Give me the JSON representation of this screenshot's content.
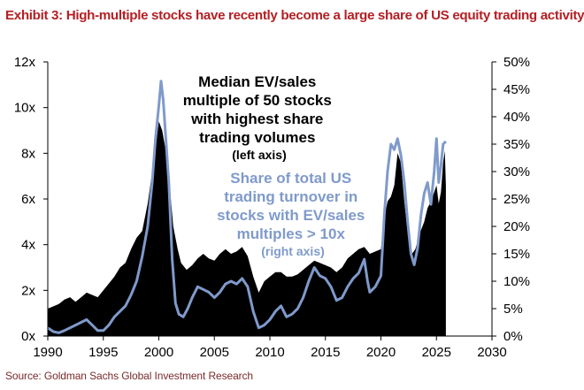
{
  "title": "Exhibit 3: High-multiple stocks have recently become a large share of US equity trading activity",
  "source": "Source: Goldman Sachs Global Investment Research",
  "colors": {
    "title": "#b41f24",
    "median_series": "#000000",
    "share_series": "#7f9acb",
    "share_annotation": "#7f9acb"
  },
  "chart_data": {
    "type": "area",
    "title": "Exhibit 3: High-multiple stocks have recently become a large share of US equity trading activity",
    "xlabel": "",
    "ylabel": "",
    "grid": false,
    "legend": "none",
    "xlim": [
      1990,
      2030
    ],
    "ylim_left": [
      0,
      12
    ],
    "ylim_right": [
      0,
      50
    ],
    "x_ticks": [
      "1990",
      "1995",
      "2000",
      "2005",
      "2010",
      "2015",
      "2020",
      "2025",
      "2030"
    ],
    "left_ticks": [
      "0x",
      "2x",
      "4x",
      "6x",
      "8x",
      "10x",
      "12x"
    ],
    "right_ticks": [
      "0%",
      "5%",
      "10%",
      "15%",
      "20%",
      "25%",
      "30%",
      "35%",
      "40%",
      "45%",
      "50%"
    ],
    "annotations": {
      "median": [
        "Median EV/sales",
        "multiple of 50 stocks",
        "with highest share",
        "trading volumes",
        "(left axis)"
      ],
      "share": [
        "Share of total US",
        "trading turnover in",
        "stocks with EV/sales",
        "multiples > 10x",
        "(right axis)"
      ]
    },
    "series": [
      {
        "name": "Median EV/sales multiple of 50 stocks with highest share trading volumes",
        "axis": "left",
        "kind": "area",
        "points": [
          [
            1990.0,
            1.2
          ],
          [
            1990.5,
            1.3
          ],
          [
            1991.0,
            1.4
          ],
          [
            1991.5,
            1.6
          ],
          [
            1992.0,
            1.7
          ],
          [
            1992.5,
            1.5
          ],
          [
            1993.0,
            1.7
          ],
          [
            1993.5,
            1.9
          ],
          [
            1994.0,
            1.8
          ],
          [
            1994.5,
            1.7
          ],
          [
            1995.0,
            2.0
          ],
          [
            1995.5,
            2.3
          ],
          [
            1996.0,
            2.6
          ],
          [
            1996.5,
            3.0
          ],
          [
            1997.0,
            3.2
          ],
          [
            1997.5,
            3.8
          ],
          [
            1998.0,
            4.3
          ],
          [
            1998.5,
            4.6
          ],
          [
            1999.0,
            5.8
          ],
          [
            1999.5,
            7.5
          ],
          [
            1999.8,
            8.6
          ],
          [
            2000.0,
            9.4
          ],
          [
            2000.3,
            9.0
          ],
          [
            2000.6,
            8.2
          ],
          [
            2000.9,
            7.0
          ],
          [
            2001.3,
            4.8
          ],
          [
            2001.7,
            3.8
          ],
          [
            2002.0,
            3.2
          ],
          [
            2002.5,
            2.9
          ],
          [
            2003.0,
            3.1
          ],
          [
            2003.5,
            3.4
          ],
          [
            2004.0,
            3.6
          ],
          [
            2004.5,
            3.4
          ],
          [
            2005.0,
            3.3
          ],
          [
            2005.5,
            3.6
          ],
          [
            2006.0,
            3.8
          ],
          [
            2006.5,
            3.6
          ],
          [
            2007.0,
            3.7
          ],
          [
            2007.5,
            3.9
          ],
          [
            2008.0,
            3.5
          ],
          [
            2008.5,
            2.6
          ],
          [
            2009.0,
            1.9
          ],
          [
            2009.5,
            2.4
          ],
          [
            2010.0,
            2.6
          ],
          [
            2010.5,
            2.8
          ],
          [
            2011.0,
            2.8
          ],
          [
            2011.5,
            2.6
          ],
          [
            2012.0,
            2.6
          ],
          [
            2012.5,
            2.7
          ],
          [
            2013.0,
            2.9
          ],
          [
            2013.5,
            3.1
          ],
          [
            2014.0,
            3.3
          ],
          [
            2014.5,
            3.2
          ],
          [
            2015.0,
            3.1
          ],
          [
            2015.5,
            3.0
          ],
          [
            2016.0,
            2.8
          ],
          [
            2016.5,
            3.0
          ],
          [
            2017.0,
            3.4
          ],
          [
            2017.5,
            3.6
          ],
          [
            2018.0,
            3.8
          ],
          [
            2018.5,
            3.9
          ],
          [
            2019.0,
            3.6
          ],
          [
            2019.5,
            3.7
          ],
          [
            2020.0,
            3.8
          ],
          [
            2020.3,
            5.2
          ],
          [
            2020.6,
            5.9
          ],
          [
            2020.9,
            6.1
          ],
          [
            2021.2,
            6.6
          ],
          [
            2021.5,
            8.0
          ],
          [
            2021.8,
            7.6
          ],
          [
            2022.1,
            5.9
          ],
          [
            2022.4,
            4.6
          ],
          [
            2022.8,
            3.6
          ],
          [
            2023.1,
            3.8
          ],
          [
            2023.5,
            4.5
          ],
          [
            2023.9,
            5.0
          ],
          [
            2024.2,
            5.6
          ],
          [
            2024.5,
            5.9
          ],
          [
            2024.8,
            6.3
          ],
          [
            2025.0,
            6.6
          ],
          [
            2025.2,
            5.8
          ],
          [
            2025.4,
            6.3
          ],
          [
            2025.6,
            7.6
          ],
          [
            2025.75,
            8.1
          ],
          [
            2025.85,
            6.6
          ]
        ]
      },
      {
        "name": "Share of total US trading turnover in stocks with EV/sales multiples > 10x",
        "axis": "right",
        "kind": "line",
        "points": [
          [
            1990.0,
            1.5
          ],
          [
            1990.5,
            0.8
          ],
          [
            1991.0,
            0.6
          ],
          [
            1991.5,
            1.0
          ],
          [
            1992.0,
            1.5
          ],
          [
            1992.5,
            2.0
          ],
          [
            1993.0,
            2.5
          ],
          [
            1993.5,
            3.0
          ],
          [
            1994.0,
            2.0
          ],
          [
            1994.5,
            1.0
          ],
          [
            1995.0,
            1.0
          ],
          [
            1995.5,
            2.0
          ],
          [
            1996.0,
            3.5
          ],
          [
            1996.5,
            4.5
          ],
          [
            1997.0,
            5.5
          ],
          [
            1997.5,
            7.5
          ],
          [
            1998.0,
            10.0
          ],
          [
            1998.5,
            14.5
          ],
          [
            1999.0,
            20.0
          ],
          [
            1999.4,
            28.0
          ],
          [
            1999.7,
            36.0
          ],
          [
            2000.0,
            42.0
          ],
          [
            2000.2,
            46.5
          ],
          [
            2000.4,
            43.0
          ],
          [
            2000.6,
            37.0
          ],
          [
            2000.9,
            28.0
          ],
          [
            2001.2,
            14.0
          ],
          [
            2001.5,
            6.0
          ],
          [
            2001.8,
            4.0
          ],
          [
            2002.2,
            3.5
          ],
          [
            2002.6,
            5.0
          ],
          [
            2003.0,
            7.0
          ],
          [
            2003.5,
            9.0
          ],
          [
            2004.0,
            8.5
          ],
          [
            2004.5,
            8.0
          ],
          [
            2005.0,
            7.0
          ],
          [
            2005.5,
            8.0
          ],
          [
            2006.0,
            9.5
          ],
          [
            2006.5,
            10.0
          ],
          [
            2007.0,
            9.5
          ],
          [
            2007.5,
            10.5
          ],
          [
            2008.0,
            9.0
          ],
          [
            2008.5,
            4.5
          ],
          [
            2009.0,
            1.5
          ],
          [
            2009.5,
            2.0
          ],
          [
            2010.0,
            3.0
          ],
          [
            2010.5,
            4.5
          ],
          [
            2011.0,
            5.5
          ],
          [
            2011.5,
            3.5
          ],
          [
            2012.0,
            4.0
          ],
          [
            2012.5,
            5.0
          ],
          [
            2013.0,
            7.0
          ],
          [
            2013.5,
            10.0
          ],
          [
            2014.0,
            12.5
          ],
          [
            2014.5,
            11.0
          ],
          [
            2015.0,
            10.5
          ],
          [
            2015.5,
            9.0
          ],
          [
            2016.0,
            6.5
          ],
          [
            2016.5,
            7.0
          ],
          [
            2017.0,
            9.0
          ],
          [
            2017.5,
            10.5
          ],
          [
            2018.0,
            11.5
          ],
          [
            2018.5,
            14.0
          ],
          [
            2018.8,
            10.0
          ],
          [
            2019.0,
            8.0
          ],
          [
            2019.5,
            9.0
          ],
          [
            2020.0,
            11.0
          ],
          [
            2020.3,
            22.0
          ],
          [
            2020.6,
            30.0
          ],
          [
            2020.9,
            35.0
          ],
          [
            2021.2,
            34.0
          ],
          [
            2021.5,
            36.0
          ],
          [
            2021.8,
            33.0
          ],
          [
            2022.1,
            28.0
          ],
          [
            2022.4,
            21.0
          ],
          [
            2022.7,
            15.0
          ],
          [
            2023.0,
            13.0
          ],
          [
            2023.3,
            16.0
          ],
          [
            2023.6,
            22.0
          ],
          [
            2023.9,
            26.0
          ],
          [
            2024.2,
            28.0
          ],
          [
            2024.5,
            24.0
          ],
          [
            2024.8,
            30.0
          ],
          [
            2025.0,
            36.0
          ],
          [
            2025.2,
            28.0
          ],
          [
            2025.4,
            31.0
          ],
          [
            2025.6,
            35.0
          ],
          [
            2025.85,
            35.5
          ]
        ]
      }
    ]
  }
}
